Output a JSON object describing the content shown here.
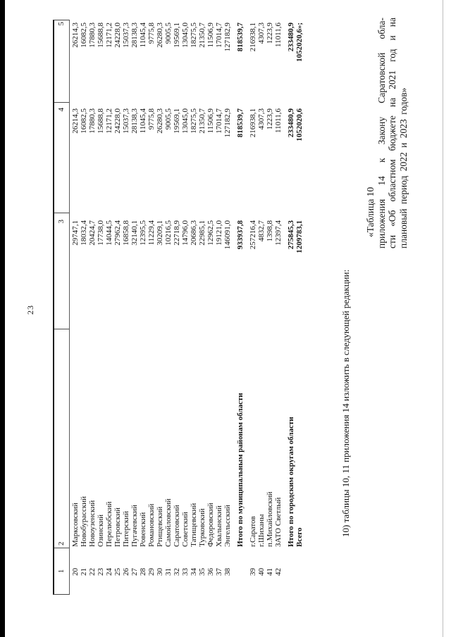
{
  "page": {
    "number": "23",
    "amendment_text": "10) таблицы 10, 11 приложения 14 изложить в следующей редакции:",
    "table_caption": [
      "«Таблица 10",
      "приложения 14 к Закону Саратовской обла-",
      "сти «Об областном бюджете на 2021 год и на",
      "плановый период 2022 и 2023 годов»"
    ]
  },
  "colors": {
    "ink": "#141414",
    "scan_edge": "#000000",
    "table_line": "#4a4a4a"
  },
  "table": {
    "headers": [
      "1",
      "2",
      "3",
      "4",
      "5"
    ],
    "rows": [
      {
        "num": "20",
        "name": "Марксовский",
        "c3": "29747,1",
        "c4": "26214,3",
        "c5": "26214,3",
        "bold": false,
        "gap": false
      },
      {
        "num": "21",
        "name": "Новобурасский",
        "c3": "18032,4",
        "c4": "16082,5",
        "c5": "16082,5",
        "bold": false,
        "gap": false
      },
      {
        "num": "22",
        "name": "Новоузенский",
        "c3": "20424,7",
        "c4": "17880,3",
        "c5": "17880,3",
        "bold": false,
        "gap": false
      },
      {
        "num": "23",
        "name": "Озинский",
        "c3": "17738,0",
        "c4": "15688,8",
        "c5": "15688,8",
        "bold": false,
        "gap": false
      },
      {
        "num": "24",
        "name": "Перелюбский",
        "c3": "14044,5",
        "c4": "12171,2",
        "c5": "12171,2",
        "bold": false,
        "gap": false
      },
      {
        "num": "25",
        "name": "Петровский",
        "c3": "27962,4",
        "c4": "24228,0",
        "c5": "24228,0",
        "bold": false,
        "gap": false
      },
      {
        "num": "26",
        "name": "Питерский",
        "c3": "16858,8",
        "c4": "15037,3",
        "c5": "15037,3",
        "bold": false,
        "gap": false
      },
      {
        "num": "27",
        "name": "Пугачевский",
        "c3": "32140,1",
        "c4": "28138,3",
        "c5": "28138,3",
        "bold": false,
        "gap": false
      },
      {
        "num": "28",
        "name": "Ровенский",
        "c3": "12395,5",
        "c4": "11045,4",
        "c5": "11045,4",
        "bold": false,
        "gap": false
      },
      {
        "num": "29",
        "name": "Романовский",
        "c3": "11229,4",
        "c4": "9775,8",
        "c5": "9775,8",
        "bold": false,
        "gap": false
      },
      {
        "num": "30",
        "name": "Ртищевский",
        "c3": "30209,1",
        "c4": "26280,3",
        "c5": "26280,3",
        "bold": false,
        "gap": false
      },
      {
        "num": "31",
        "name": "Самойловский",
        "c3": "10216,5",
        "c4": "9005,5",
        "c5": "9005,5",
        "bold": false,
        "gap": false
      },
      {
        "num": "32",
        "name": "Саратовский",
        "c3": "22718,9",
        "c4": "19569,1",
        "c5": "19569,1",
        "bold": false,
        "gap": false
      },
      {
        "num": "33",
        "name": "Советский",
        "c3": "14796,0",
        "c4": "13045,0",
        "c5": "13045,0",
        "bold": false,
        "gap": false
      },
      {
        "num": "34",
        "name": "Татищевский",
        "c3": "20686,3",
        "c4": "18275,5",
        "c5": "18275,5",
        "bold": false,
        "gap": false
      },
      {
        "num": "35",
        "name": "Турковский",
        "c3": "22985,1",
        "c4": "21350,7",
        "c5": "21350,7",
        "bold": false,
        "gap": false
      },
      {
        "num": "36",
        "name": "Федоровский",
        "c3": "12962,5",
        "c4": "11506,9",
        "c5": "11506,9",
        "bold": false,
        "gap": false
      },
      {
        "num": "37",
        "name": "Хвалынский",
        "c3": "19121,0",
        "c4": "17014,7",
        "c5": "17014,7",
        "bold": false,
        "gap": false
      },
      {
        "num": "38",
        "name": "Энгельсский",
        "c3": "146091,0",
        "c4": "127182,9",
        "c5": "127182,9",
        "bold": false,
        "gap": false
      },
      {
        "num": "",
        "name": "Итого по муниципальным районам области",
        "c3": "933937,8",
        "c4": "818539,7",
        "c5": "818539,7",
        "bold": true,
        "gap": true
      },
      {
        "num": "39",
        "name": "г.Саратов",
        "c3": "257216,4",
        "c4": "216938,1",
        "c5": "216938,1",
        "bold": false,
        "gap": true
      },
      {
        "num": "40",
        "name": "г.Шиханы",
        "c3": "4832,7",
        "c4": "4307,3",
        "c5": "4307,3",
        "bold": false,
        "gap": false
      },
      {
        "num": "41",
        "name": "п.Михайловский",
        "c3": "1398,8",
        "c4": "1223,9",
        "c5": "1223,9",
        "bold": false,
        "gap": false
      },
      {
        "num": "42",
        "name": "ЗАТО Светлый",
        "c3": "12397,4",
        "c4": "11011,6",
        "c5": "11011,6",
        "bold": false,
        "gap": false
      },
      {
        "num": "",
        "name": "Итого по городским округам области",
        "c3": "275845,3",
        "c4": "233480,9",
        "c5": "233480,9",
        "bold": true,
        "gap": true
      },
      {
        "num": "",
        "name": "Всего",
        "c3": "1209783,1",
        "c4": "1052020,6",
        "c5": "1052020,6»;",
        "bold": true,
        "gap": false
      }
    ]
  }
}
